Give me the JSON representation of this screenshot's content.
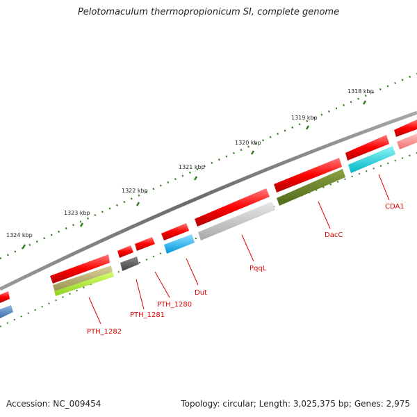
{
  "title": "Pelotomaculum thermopropionicum SI, complete genome",
  "footer": {
    "accession": "Accession: NC_009454",
    "topology": "Topology: circular; Length: 3,025,375 bp; Genes: 2,975"
  },
  "ticks": [
    {
      "label": "1318 kbp"
    },
    {
      "label": "1319 kbp"
    },
    {
      "label": "1320 kbp"
    },
    {
      "label": "1321 kbp"
    },
    {
      "label": "1322 kbp"
    },
    {
      "label": "1323 kbp"
    },
    {
      "label": "1324 kbp"
    }
  ],
  "genes": [
    {
      "label": "CDA1"
    },
    {
      "label": "DacC"
    },
    {
      "label": "PqqL"
    },
    {
      "label": "Dut"
    },
    {
      "label": "PTH_1280"
    },
    {
      "label": "PTH_1281"
    },
    {
      "label": "PTH_1282"
    }
  ],
  "colors": {
    "forward_strand": "#ff0000",
    "backbone": "#808080",
    "tick": "#2e7d1e",
    "label": "#e00000"
  }
}
